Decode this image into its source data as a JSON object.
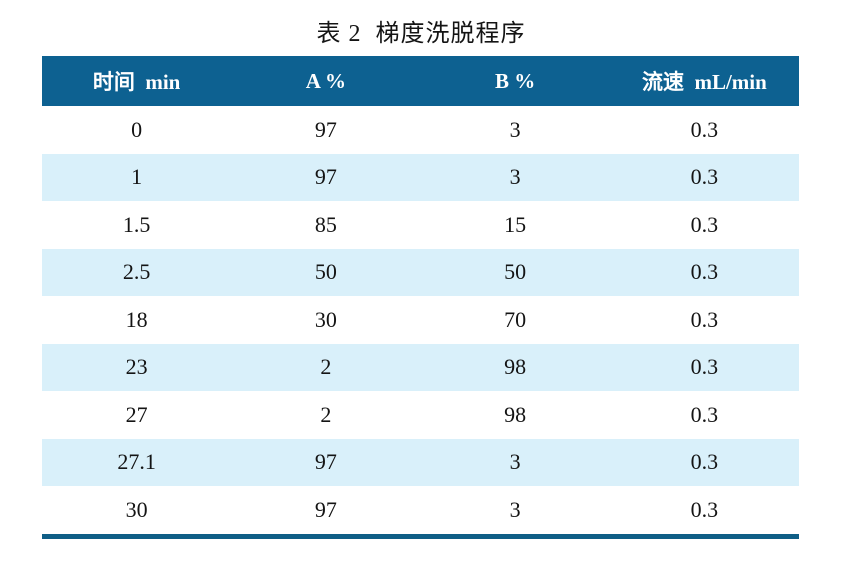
{
  "title": "表 2  梯度洗脱程序",
  "colors": {
    "header_bg": "#0d6191",
    "row_alt_bg": "#d9f0fa",
    "bottom_border": "#0f5e86",
    "header_text": "#ffffff",
    "body_text": "#141414"
  },
  "table": {
    "headers": [
      "时间  min",
      "A %",
      "B %",
      "流速  mL/min"
    ],
    "rows": [
      [
        "0",
        "97",
        "3",
        "0.3"
      ],
      [
        "1",
        "97",
        "3",
        "0.3"
      ],
      [
        "1.5",
        "85",
        "15",
        "0.3"
      ],
      [
        "2.5",
        "50",
        "50",
        "0.3"
      ],
      [
        "18",
        "30",
        "70",
        "0.3"
      ],
      [
        "23",
        "2",
        "98",
        "0.3"
      ],
      [
        "27",
        "2",
        "98",
        "0.3"
      ],
      [
        "27.1",
        "97",
        "3",
        "0.3"
      ],
      [
        "30",
        "97",
        "3",
        "0.3"
      ]
    ]
  },
  "chart_data": {
    "type": "table",
    "title": "表 2 梯度洗脱程序",
    "columns": [
      "时间 min",
      "A %",
      "B %",
      "流速 mL/min"
    ],
    "rows": [
      [
        0,
        97,
        3,
        0.3
      ],
      [
        1,
        97,
        3,
        0.3
      ],
      [
        1.5,
        85,
        15,
        0.3
      ],
      [
        2.5,
        50,
        50,
        0.3
      ],
      [
        18,
        30,
        70,
        0.3
      ],
      [
        23,
        2,
        98,
        0.3
      ],
      [
        27,
        2,
        98,
        0.3
      ],
      [
        27.1,
        97,
        3,
        0.3
      ],
      [
        30,
        97,
        3,
        0.3
      ]
    ]
  }
}
